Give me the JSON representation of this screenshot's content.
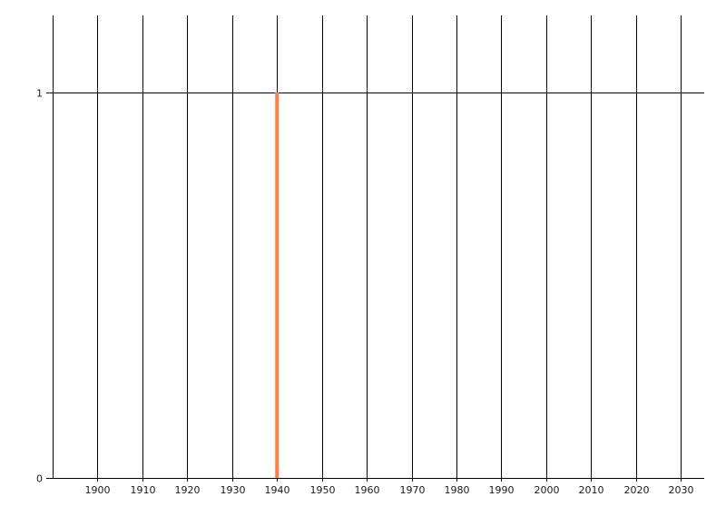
{
  "chart_data": {
    "type": "bar",
    "title": "",
    "xlabel": "",
    "ylabel": "",
    "xlim": [
      1890,
      2035
    ],
    "ylim": [
      0,
      1.2
    ],
    "x_ticks": [
      "1900",
      "1910",
      "1920",
      "1930",
      "1940",
      "1950",
      "1960",
      "1970",
      "1980",
      "1990",
      "2000",
      "2010",
      "2020",
      "2030"
    ],
    "y_ticks": [
      "0",
      "1"
    ],
    "grid": true,
    "bar_color": "#ff7f3f",
    "grid_color": "#000000",
    "points": [
      {
        "x": 1940,
        "y": 1
      }
    ]
  }
}
